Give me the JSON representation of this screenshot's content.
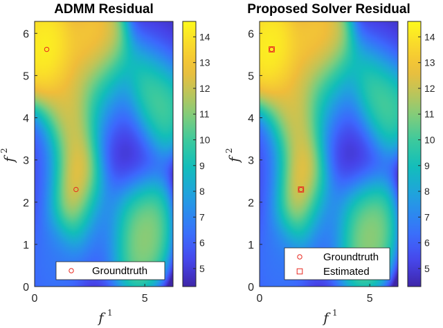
{
  "colors": {
    "colormap": [
      "#3e26a8",
      "#4743e8",
      "#3d68fd",
      "#2c89f0",
      "#1ea7d8",
      "#12beb9",
      "#39c99f",
      "#7acd7f",
      "#bcc55a",
      "#f0bd3a",
      "#f9d82d",
      "#fdfa1c"
    ],
    "groundtruth_marker": "#e8281f",
    "estimated_marker": "#e8281f"
  },
  "chart_data": [
    {
      "type": "heatmap",
      "title": "ADMM Residual",
      "xlabel": "f",
      "xlabel_sup": "1",
      "ylabel": "f",
      "ylabel_sup": "2",
      "xlim": [
        0,
        6.283
      ],
      "ylim": [
        0,
        6.283
      ],
      "xticks": [
        0,
        5
      ],
      "yticks": [
        0,
        1,
        2,
        3,
        4,
        5,
        6
      ],
      "colorbar": {
        "range": [
          4.3,
          14.6
        ],
        "ticks": [
          5,
          6,
          7,
          8,
          9,
          10,
          11,
          12,
          13,
          14
        ]
      },
      "features": [
        {
          "x": 0.5,
          "y": 5.6,
          "value": 15.0
        },
        {
          "x": 2.8,
          "y": 5.5,
          "value": 14.2
        },
        {
          "x": 1.7,
          "y": 4.1,
          "value": 13.0
        },
        {
          "x": 1.9,
          "y": 2.4,
          "value": 14.6
        },
        {
          "x": 4.6,
          "y": 1.4,
          "value": 12.0
        },
        {
          "x": 5.4,
          "y": 4.6,
          "value": 11.2
        },
        {
          "x": 4.1,
          "y": 3.2,
          "value": 4.3
        },
        {
          "x": 5.9,
          "y": 6.1,
          "value": 4.8
        },
        {
          "x": 0.3,
          "y": 2.8,
          "value": 5.5
        },
        {
          "x": 3.0,
          "y": 1.5,
          "value": 6.0
        },
        {
          "x": 3.3,
          "y": 4.4,
          "value": 7.0
        },
        {
          "x": 0.8,
          "y": 0.5,
          "value": 6.8
        }
      ],
      "markers": [
        {
          "series": "Groundtruth",
          "shape": "circle",
          "x": 0.55,
          "y": 5.62
        },
        {
          "series": "Groundtruth",
          "shape": "circle",
          "x": 1.88,
          "y": 2.3
        }
      ],
      "legend": {
        "position": "bottom-right",
        "entries": [
          {
            "label": "Groundtruth",
            "shape": "circle"
          }
        ]
      }
    },
    {
      "type": "heatmap",
      "title": "Proposed Solver Residual",
      "xlabel": "f",
      "xlabel_sup": "1",
      "ylabel": "f",
      "ylabel_sup": "2",
      "xlim": [
        0,
        6.283
      ],
      "ylim": [
        0,
        6.283
      ],
      "xticks": [
        0,
        5
      ],
      "yticks": [
        0,
        1,
        2,
        3,
        4,
        5,
        6
      ],
      "colorbar": {
        "range": [
          4.3,
          14.6
        ],
        "ticks": [
          5,
          6,
          7,
          8,
          9,
          10,
          11,
          12,
          13,
          14
        ]
      },
      "features": [
        {
          "x": 0.5,
          "y": 5.6,
          "value": 15.0
        },
        {
          "x": 2.8,
          "y": 5.5,
          "value": 14.2
        },
        {
          "x": 1.7,
          "y": 4.1,
          "value": 13.0
        },
        {
          "x": 1.9,
          "y": 2.4,
          "value": 14.6
        },
        {
          "x": 4.6,
          "y": 1.4,
          "value": 12.0
        },
        {
          "x": 5.4,
          "y": 4.6,
          "value": 11.2
        },
        {
          "x": 4.1,
          "y": 3.2,
          "value": 4.3
        },
        {
          "x": 5.9,
          "y": 6.1,
          "value": 4.8
        },
        {
          "x": 0.3,
          "y": 2.8,
          "value": 5.5
        },
        {
          "x": 3.0,
          "y": 1.5,
          "value": 6.0
        },
        {
          "x": 3.3,
          "y": 4.4,
          "value": 7.0
        },
        {
          "x": 0.8,
          "y": 0.5,
          "value": 6.8
        }
      ],
      "markers": [
        {
          "series": "Groundtruth",
          "shape": "circle",
          "x": 0.55,
          "y": 5.62
        },
        {
          "series": "Groundtruth",
          "shape": "circle",
          "x": 1.88,
          "y": 2.3
        },
        {
          "series": "Estimated",
          "shape": "square",
          "x": 0.55,
          "y": 5.62
        },
        {
          "series": "Estimated",
          "shape": "square",
          "x": 1.88,
          "y": 2.3
        }
      ],
      "legend": {
        "position": "bottom-right",
        "entries": [
          {
            "label": "Groundtruth",
            "shape": "circle"
          },
          {
            "label": "Estimated",
            "shape": "square"
          }
        ]
      }
    }
  ]
}
